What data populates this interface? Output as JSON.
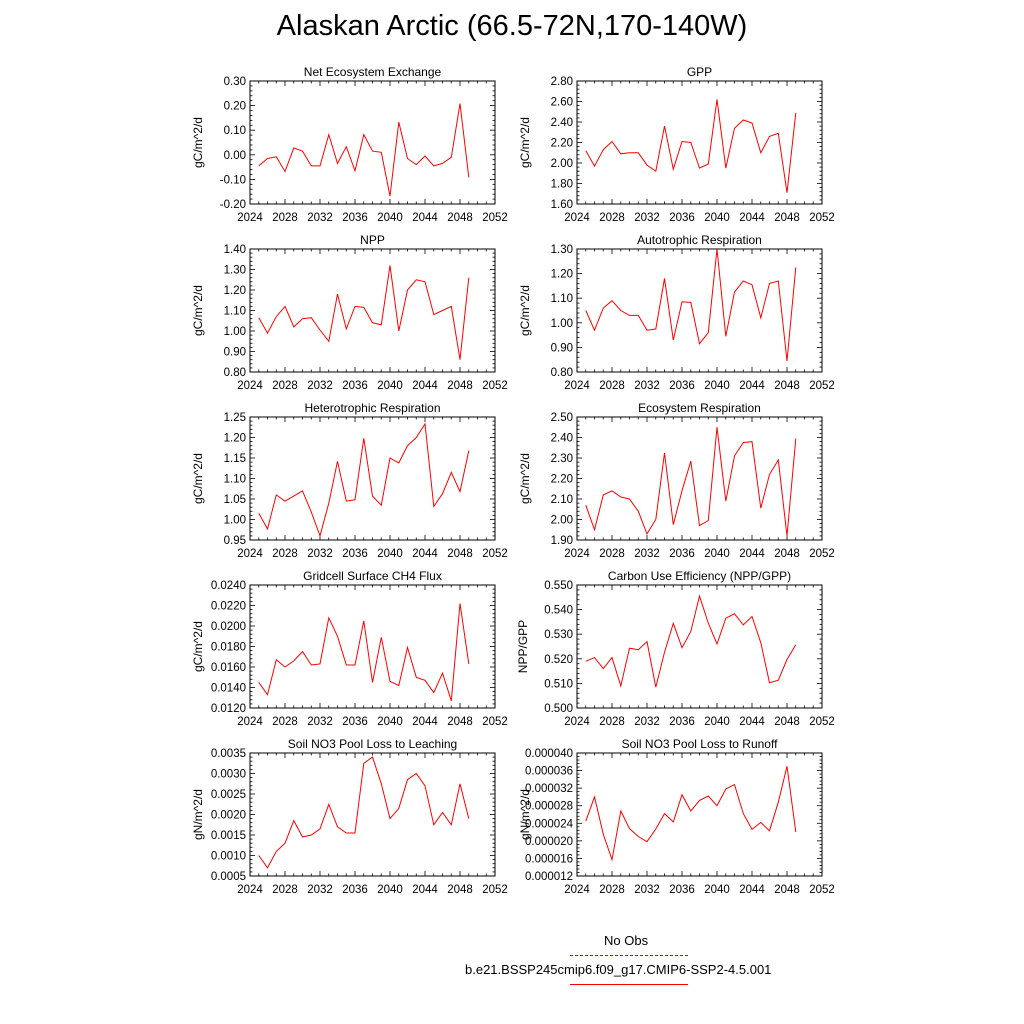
{
  "title": "Alaskan Arctic (66.5-72N,170-140W)",
  "legend": {
    "obs_label": "No Obs",
    "obs_color": "#3333cc",
    "model_label": "b.e21.BSSP245cmip6.f09_g17.CMIP6-SSP2-4.5.001",
    "model_color": "#ff0000"
  },
  "chart_data": [
    {
      "type": "line",
      "title": "Net Ecosystem Exchange",
      "ylabel": "gC/m^2/d",
      "xlim": [
        2024,
        2052
      ],
      "xticks": [
        "2024",
        "2028",
        "2032",
        "2036",
        "2040",
        "2044",
        "2048",
        "2052"
      ],
      "ylim": [
        -0.2,
        0.3
      ],
      "yticks": [
        "-0.20",
        "-0.10",
        "0.00",
        "0.10",
        "0.20",
        "0.30"
      ],
      "x": [
        2025,
        2026,
        2027,
        2028,
        2029,
        2030,
        2031,
        2032,
        2033,
        2034,
        2035,
        2036,
        2037,
        2038,
        2039,
        2040,
        2041,
        2042,
        2043,
        2044,
        2045,
        2046,
        2047,
        2048,
        2049
      ],
      "series": [
        {
          "color": "#ff0000",
          "values": [
            -0.045,
            -0.015,
            -0.008,
            -0.068,
            0.028,
            0.015,
            -0.045,
            -0.045,
            0.082,
            -0.035,
            0.033,
            -0.065,
            0.082,
            0.015,
            0.01,
            -0.168,
            0.133,
            -0.015,
            -0.04,
            -0.005,
            -0.045,
            -0.035,
            -0.01,
            0.208,
            -0.092
          ]
        }
      ]
    },
    {
      "type": "line",
      "title": "GPP",
      "ylabel": "gC/m^2/d",
      "xlim": [
        2024,
        2052
      ],
      "xticks": [
        "2024",
        "2028",
        "2032",
        "2036",
        "2040",
        "2044",
        "2048",
        "2052"
      ],
      "ylim": [
        1.6,
        2.8
      ],
      "yticks": [
        "1.60",
        "1.80",
        "2.00",
        "2.20",
        "2.40",
        "2.60",
        "2.80"
      ],
      "x": [
        2025,
        2026,
        2027,
        2028,
        2029,
        2030,
        2031,
        2032,
        2033,
        2034,
        2035,
        2036,
        2037,
        2038,
        2039,
        2040,
        2041,
        2042,
        2043,
        2044,
        2045,
        2046,
        2047,
        2048,
        2049
      ],
      "series": [
        {
          "color": "#ff0000",
          "values": [
            2.12,
            1.97,
            2.13,
            2.21,
            2.09,
            2.1,
            2.1,
            1.98,
            1.92,
            2.36,
            1.94,
            2.21,
            2.2,
            1.95,
            1.99,
            2.62,
            1.95,
            2.34,
            2.42,
            2.39,
            2.1,
            2.26,
            2.29,
            1.71,
            2.49
          ]
        }
      ]
    },
    {
      "type": "line",
      "title": "NPP",
      "ylabel": "gC/m^2/d",
      "xlim": [
        2024,
        2052
      ],
      "xticks": [
        "2024",
        "2028",
        "2032",
        "2036",
        "2040",
        "2044",
        "2048",
        "2052"
      ],
      "ylim": [
        0.8,
        1.4
      ],
      "yticks": [
        "0.80",
        "0.90",
        "1.00",
        "1.10",
        "1.20",
        "1.30",
        "1.40"
      ],
      "x": [
        2025,
        2026,
        2027,
        2028,
        2029,
        2030,
        2031,
        2032,
        2033,
        2034,
        2035,
        2036,
        2037,
        2038,
        2039,
        2040,
        2041,
        2042,
        2043,
        2044,
        2045,
        2046,
        2047,
        2048,
        2049
      ],
      "series": [
        {
          "color": "#ff0000",
          "values": [
            1.065,
            0.99,
            1.07,
            1.12,
            1.02,
            1.06,
            1.065,
            1.005,
            0.95,
            1.18,
            1.01,
            1.12,
            1.115,
            1.04,
            1.03,
            1.32,
            1.0,
            1.2,
            1.25,
            1.24,
            1.08,
            1.1,
            1.12,
            0.86,
            1.26
          ]
        }
      ]
    },
    {
      "type": "line",
      "title": "Autotrophic Respiration",
      "ylabel": "gC/m^2/d",
      "xlim": [
        2024,
        2052
      ],
      "xticks": [
        "2024",
        "2028",
        "2032",
        "2036",
        "2040",
        "2044",
        "2048",
        "2052"
      ],
      "ylim": [
        0.8,
        1.3
      ],
      "yticks": [
        "0.80",
        "0.90",
        "1.00",
        "1.10",
        "1.20",
        "1.30"
      ],
      "x": [
        2025,
        2026,
        2027,
        2028,
        2029,
        2030,
        2031,
        2032,
        2033,
        2034,
        2035,
        2036,
        2037,
        2038,
        2039,
        2040,
        2041,
        2042,
        2043,
        2044,
        2045,
        2046,
        2047,
        2048,
        2049
      ],
      "series": [
        {
          "color": "#ff0000",
          "values": [
            1.05,
            0.97,
            1.06,
            1.09,
            1.05,
            1.03,
            1.03,
            0.97,
            0.975,
            1.18,
            0.93,
            1.085,
            1.083,
            0.915,
            0.96,
            1.3,
            0.945,
            1.125,
            1.17,
            1.155,
            1.02,
            1.16,
            1.17,
            0.845,
            1.225
          ]
        }
      ]
    },
    {
      "type": "line",
      "title": "Heterotrophic Respiration",
      "ylabel": "gC/m^2/d",
      "xlim": [
        2024,
        2052
      ],
      "xticks": [
        "2024",
        "2028",
        "2032",
        "2036",
        "2040",
        "2044",
        "2048",
        "2052"
      ],
      "ylim": [
        0.95,
        1.25
      ],
      "yticks": [
        "0.95",
        "1.00",
        "1.05",
        "1.10",
        "1.15",
        "1.20",
        "1.25"
      ],
      "x": [
        2025,
        2026,
        2027,
        2028,
        2029,
        2030,
        2031,
        2032,
        2033,
        2034,
        2035,
        2036,
        2037,
        2038,
        2039,
        2040,
        2041,
        2042,
        2043,
        2044,
        2045,
        2046,
        2047,
        2048,
        2049
      ],
      "series": [
        {
          "color": "#ff0000",
          "values": [
            1.015,
            0.977,
            1.06,
            1.045,
            1.057,
            1.07,
            1.018,
            0.96,
            1.04,
            1.142,
            1.045,
            1.048,
            1.198,
            1.057,
            1.035,
            1.15,
            1.138,
            1.18,
            1.2,
            1.233,
            1.032,
            1.063,
            1.115,
            1.068,
            1.168
          ]
        }
      ]
    },
    {
      "type": "line",
      "title": "Ecosystem Respiration",
      "ylabel": "gC/m^2/d",
      "xlim": [
        2024,
        2052
      ],
      "xticks": [
        "2024",
        "2028",
        "2032",
        "2036",
        "2040",
        "2044",
        "2048",
        "2052"
      ],
      "ylim": [
        1.9,
        2.5
      ],
      "yticks": [
        "1.90",
        "2.00",
        "2.10",
        "2.20",
        "2.30",
        "2.40",
        "2.50"
      ],
      "x": [
        2025,
        2026,
        2027,
        2028,
        2029,
        2030,
        2031,
        2032,
        2033,
        2034,
        2035,
        2036,
        2037,
        2038,
        2039,
        2040,
        2041,
        2042,
        2043,
        2044,
        2045,
        2046,
        2047,
        2048,
        2049
      ],
      "series": [
        {
          "color": "#ff0000",
          "values": [
            2.07,
            1.95,
            2.12,
            2.14,
            2.11,
            2.1,
            2.04,
            1.93,
            2.0,
            2.325,
            1.975,
            2.14,
            2.285,
            1.97,
            1.995,
            2.45,
            2.09,
            2.31,
            2.375,
            2.38,
            2.055,
            2.22,
            2.29,
            1.92,
            2.395
          ]
        }
      ]
    },
    {
      "type": "line",
      "title": "Gridcell Surface CH4 Flux",
      "ylabel": "gC/m^2/d",
      "xlim": [
        2024,
        2052
      ],
      "xticks": [
        "2024",
        "2028",
        "2032",
        "2036",
        "2040",
        "2044",
        "2048",
        "2052"
      ],
      "ylim": [
        0.012,
        0.024
      ],
      "yticks": [
        "0.0120",
        "0.0140",
        "0.0160",
        "0.0180",
        "0.0200",
        "0.0220",
        "0.0240"
      ],
      "x": [
        2025,
        2026,
        2027,
        2028,
        2029,
        2030,
        2031,
        2032,
        2033,
        2034,
        2035,
        2036,
        2037,
        2038,
        2039,
        2040,
        2041,
        2042,
        2043,
        2044,
        2045,
        2046,
        2047,
        2048,
        2049
      ],
      "series": [
        {
          "color": "#ff0000",
          "values": [
            0.0145,
            0.0133,
            0.0167,
            0.016,
            0.0166,
            0.0175,
            0.0162,
            0.0163,
            0.0208,
            0.019,
            0.0162,
            0.0162,
            0.0205,
            0.0145,
            0.0189,
            0.0146,
            0.0142,
            0.0179,
            0.015,
            0.0147,
            0.0135,
            0.0154,
            0.0127,
            0.0222,
            0.0163
          ]
        }
      ]
    },
    {
      "type": "line",
      "title": "Carbon Use Efficiency (NPP/GPP)",
      "ylabel": "NPP/GPP",
      "xlim": [
        2024,
        2052
      ],
      "xticks": [
        "2024",
        "2028",
        "2032",
        "2036",
        "2040",
        "2044",
        "2048",
        "2052"
      ],
      "ylim": [
        0.5,
        0.55
      ],
      "yticks": [
        "0.500",
        "0.510",
        "0.520",
        "0.530",
        "0.540",
        "0.550"
      ],
      "x": [
        2025,
        2026,
        2027,
        2028,
        2029,
        2030,
        2031,
        2032,
        2033,
        2034,
        2035,
        2036,
        2037,
        2038,
        2039,
        2040,
        2041,
        2042,
        2043,
        2044,
        2045,
        2046,
        2047,
        2048,
        2049
      ],
      "series": [
        {
          "color": "#ff0000",
          "values": [
            0.519,
            0.5205,
            0.516,
            0.5205,
            0.509,
            0.5243,
            0.5237,
            0.527,
            0.5085,
            0.5227,
            0.5344,
            0.5245,
            0.5311,
            0.5455,
            0.5345,
            0.526,
            0.5365,
            0.5383,
            0.5338,
            0.5372,
            0.5265,
            0.5103,
            0.5113,
            0.5197,
            0.5257
          ]
        }
      ]
    },
    {
      "type": "line",
      "title": "Soil NO3 Pool Loss to Leaching",
      "ylabel": "gN/m^2/d",
      "xlim": [
        2024,
        2052
      ],
      "xticks": [
        "2024",
        "2028",
        "2032",
        "2036",
        "2040",
        "2044",
        "2048",
        "2052"
      ],
      "ylim": [
        0.0005,
        0.0035
      ],
      "yticks": [
        "0.0005",
        "0.0010",
        "0.0015",
        "0.0020",
        "0.0025",
        "0.0030",
        "0.0035"
      ],
      "x": [
        2025,
        2026,
        2027,
        2028,
        2029,
        2030,
        2031,
        2032,
        2033,
        2034,
        2035,
        2036,
        2037,
        2038,
        2039,
        2040,
        2041,
        2042,
        2043,
        2044,
        2045,
        2046,
        2047,
        2048,
        2049
      ],
      "series": [
        {
          "color": "#ff0000",
          "values": [
            0.001,
            0.0007,
            0.0011,
            0.0013,
            0.00185,
            0.00145,
            0.0015,
            0.00165,
            0.00225,
            0.0017,
            0.00155,
            0.00155,
            0.00325,
            0.0034,
            0.00275,
            0.0019,
            0.00215,
            0.00285,
            0.003,
            0.0027,
            0.00175,
            0.00205,
            0.00175,
            0.00275,
            0.0019
          ]
        }
      ]
    },
    {
      "type": "line",
      "title": "Soil NO3 Pool Loss to Runoff",
      "ylabel": "gN/m^2/d",
      "xlim": [
        2024,
        2052
      ],
      "xticks": [
        "2024",
        "2028",
        "2032",
        "2036",
        "2040",
        "2044",
        "2048",
        "2052"
      ],
      "ylim": [
        1.2e-05,
        4e-05
      ],
      "yticks": [
        "0.000012",
        "0.000016",
        "0.000020",
        "0.000024",
        "0.000028",
        "0.000032",
        "0.000036",
        "0.000040"
      ],
      "x": [
        2025,
        2026,
        2027,
        2028,
        2029,
        2030,
        2031,
        2032,
        2033,
        2034,
        2035,
        2036,
        2037,
        2038,
        2039,
        2040,
        2041,
        2042,
        2043,
        2044,
        2045,
        2046,
        2047,
        2048,
        2049
      ],
      "series": [
        {
          "color": "#ff0000",
          "values": [
            2.45e-05,
            3e-05,
            2.15e-05,
            1.57e-05,
            2.68e-05,
            2.28e-05,
            2.1e-05,
            1.98e-05,
            2.27e-05,
            2.62e-05,
            2.43e-05,
            3.05e-05,
            2.68e-05,
            2.92e-05,
            3.02e-05,
            2.8e-05,
            3.18e-05,
            3.28e-05,
            2.62e-05,
            2.26e-05,
            2.42e-05,
            2.23e-05,
            2.88e-05,
            3.7e-05,
            2.2e-05
          ]
        }
      ]
    }
  ]
}
